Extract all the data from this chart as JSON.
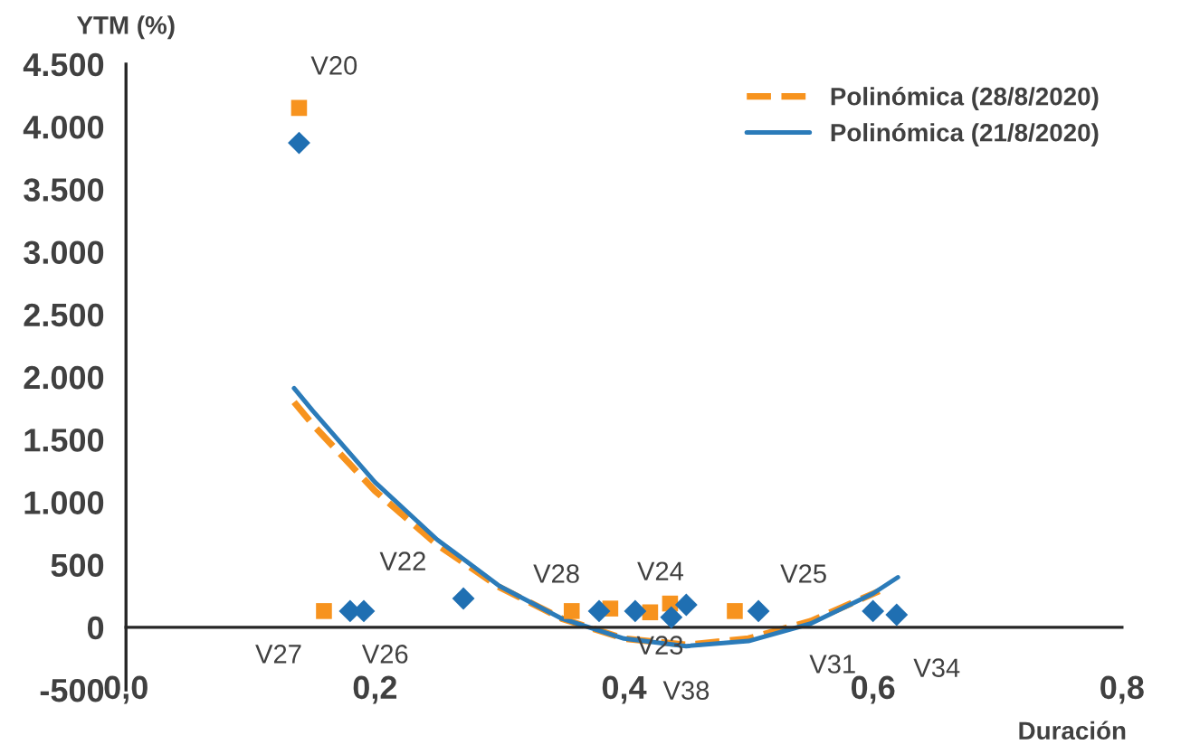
{
  "chart_data": {
    "type": "scatter",
    "xlabel": "Duración",
    "ylabel": "YTM (%)",
    "xlim": [
      0,
      0.8
    ],
    "ylim": [
      -500,
      4500
    ],
    "xticks": [
      {
        "value": 0,
        "label": "0,0"
      },
      {
        "value": 0.2,
        "label": "0,2"
      },
      {
        "value": 0.4,
        "label": "0,4"
      },
      {
        "value": 0.6,
        "label": "0,6"
      },
      {
        "value": 0.8,
        "label": "0,8"
      }
    ],
    "yticks": [
      {
        "value": -500,
        "label": "-500"
      },
      {
        "value": 0,
        "label": "0"
      },
      {
        "value": 500,
        "label": "500"
      },
      {
        "value": 1000,
        "label": "1.000"
      },
      {
        "value": 1500,
        "label": "1.500"
      },
      {
        "value": 2000,
        "label": "2.000"
      },
      {
        "value": 2500,
        "label": "2.500"
      },
      {
        "value": 3000,
        "label": "3.000"
      },
      {
        "value": 3500,
        "label": "3.500"
      },
      {
        "value": 4000,
        "label": "4.000"
      },
      {
        "value": 4500,
        "label": "4.500"
      }
    ],
    "grid": false,
    "legend": "top right",
    "series": [
      {
        "color": "#f7931e",
        "marker": "square",
        "x": [
          0.139,
          0.159,
          0.358,
          0.389,
          0.421,
          0.437,
          0.489
        ],
        "values": [
          4150,
          130,
          130,
          150,
          120,
          190,
          130
        ]
      },
      {
        "color": "#1f6fb2",
        "marker": "diamond",
        "x": [
          0.139,
          0.18,
          0.191,
          0.271,
          0.38,
          0.409,
          0.438,
          0.45,
          0.508,
          0.6,
          0.619
        ],
        "values": [
          3870,
          130,
          130,
          230,
          130,
          130,
          80,
          180,
          130,
          130,
          100
        ]
      },
      {
        "type": "line",
        "name": "Polinómica (28/8/2020)",
        "color": "#f7931e",
        "line_style": "dashed",
        "x": [
          0.135,
          0.15,
          0.2,
          0.25,
          0.3,
          0.35,
          0.4,
          0.45,
          0.5,
          0.55,
          0.605
        ],
        "values": [
          1800,
          1620,
          1090,
          660,
          320,
          70,
          -90,
          -140,
          -90,
          50,
          290
        ]
      },
      {
        "type": "line",
        "name": "Polinómica (21/8/2020)",
        "color": "#2b7bb9",
        "line_style": "solid",
        "x": [
          0.135,
          0.15,
          0.2,
          0.25,
          0.3,
          0.35,
          0.4,
          0.45,
          0.5,
          0.55,
          0.6,
          0.62
        ],
        "values": [
          1910,
          1730,
          1160,
          700,
          330,
          70,
          -90,
          -150,
          -110,
          30,
          270,
          400
        ]
      }
    ],
    "annotations": [
      {
        "text": "V20",
        "x": 0.139,
        "y": 4150
      },
      {
        "text": "V27",
        "x": 0.159,
        "y": 130
      },
      {
        "text": "V26",
        "x": 0.18,
        "y": 130
      },
      {
        "text": "V22",
        "x": 0.271,
        "y": 230
      },
      {
        "text": "V28",
        "x": 0.358,
        "y": 130
      },
      {
        "text": "V24",
        "x": 0.389,
        "y": 150
      },
      {
        "text": "V23",
        "x": 0.421,
        "y": 120
      },
      {
        "text": "V38",
        "x": 0.438,
        "y": 80
      },
      {
        "text": "V25",
        "x": 0.508,
        "y": 130
      },
      {
        "text": "V31",
        "x": 0.6,
        "y": 130
      },
      {
        "text": "V34",
        "x": 0.619,
        "y": 100
      }
    ]
  }
}
